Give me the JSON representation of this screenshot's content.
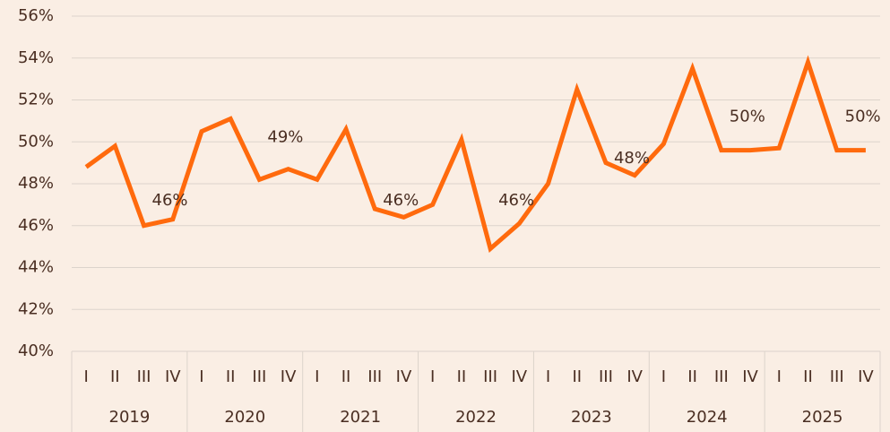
{
  "chart_data": {
    "type": "line",
    "categories": [
      "I",
      "II",
      "III",
      "IV",
      "I",
      "II",
      "III",
      "IV",
      "I",
      "II",
      "III",
      "IV",
      "I",
      "II",
      "III",
      "IV",
      "I",
      "II",
      "III",
      "IV",
      "I",
      "II",
      "III",
      "IV",
      "I",
      "II",
      "III",
      "IV"
    ],
    "category_groups": [
      "2019",
      "2020",
      "2021",
      "2022",
      "2023",
      "2024",
      "2025"
    ],
    "series": [
      {
        "color": "#ff6a0d",
        "values": [
          48.8,
          49.8,
          46.0,
          46.3,
          50.5,
          51.1,
          48.2,
          48.7,
          48.2,
          50.6,
          46.8,
          46.4,
          47.0,
          50.1,
          44.9,
          46.1,
          48.0,
          52.5,
          49.0,
          48.4,
          49.9,
          53.5,
          49.6,
          49.6,
          49.7,
          53.8,
          49.6,
          49.6
        ]
      }
    ],
    "annotations": [
      {
        "value": 46,
        "label": "46%"
      },
      {
        "value": 49,
        "label": "49%"
      },
      {
        "value": 46,
        "label": "46%"
      },
      {
        "value": 46,
        "label": "46%"
      },
      {
        "value": 48,
        "label": "48%"
      },
      {
        "value": 50,
        "label": "50%"
      },
      {
        "value": 50,
        "label": "50%"
      }
    ],
    "ylim": [
      40,
      56
    ],
    "yticks": [
      {
        "value": 40,
        "label": "40%"
      },
      {
        "value": 42,
        "label": "42%"
      },
      {
        "value": 44,
        "label": "44%"
      },
      {
        "value": 46,
        "label": "46%"
      },
      {
        "value": 48,
        "label": "48%"
      },
      {
        "value": 50,
        "label": "50%"
      },
      {
        "value": 52,
        "label": "52%"
      },
      {
        "value": 54,
        "label": "54%"
      },
      {
        "value": 56,
        "label": "56%"
      }
    ],
    "grid": true
  }
}
